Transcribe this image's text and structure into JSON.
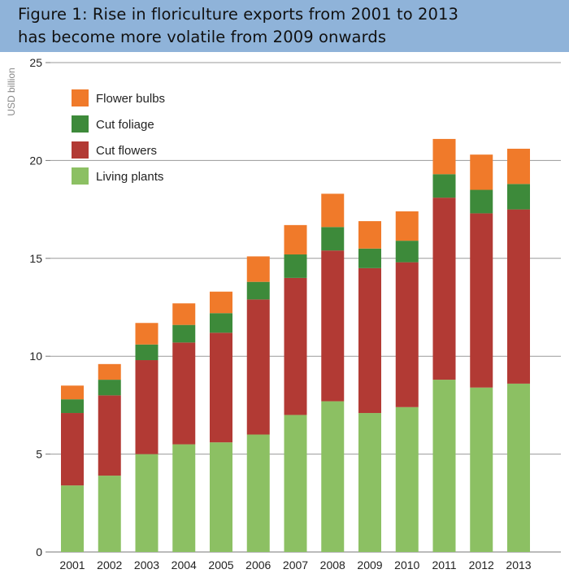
{
  "figure": {
    "title_line_1": "Figure 1: Rise in floriculture exports from 2001 to 2013",
    "title_line_2": "has become more volatile from 2009 onwards",
    "title_band_color": "#8fb3d9"
  },
  "chart_data": {
    "type": "bar",
    "stacked": true,
    "title": "Figure 1: Rise in floriculture exports from 2001 to 2013 has become more volatile from 2009 onwards",
    "xlabel": "",
    "ylabel": "USD billion",
    "ylim": [
      0,
      25
    ],
    "yticks": [
      0,
      5,
      10,
      15,
      20,
      25
    ],
    "grid": true,
    "legend_position": "top-left",
    "categories": [
      "2001",
      "2002",
      "2003",
      "2004",
      "2005",
      "2006",
      "2007",
      "2008",
      "2009",
      "2010",
      "2011",
      "2012",
      "2013"
    ],
    "series": [
      {
        "name": "Living plants",
        "color": "#8cc063",
        "values": [
          3.4,
          3.9,
          5.0,
          5.5,
          5.6,
          6.0,
          7.0,
          7.7,
          7.1,
          7.4,
          8.8,
          8.4,
          8.6
        ]
      },
      {
        "name": "Cut flowers",
        "color": "#b23a34",
        "values": [
          3.7,
          4.1,
          4.8,
          5.2,
          5.6,
          6.9,
          7.0,
          7.7,
          7.4,
          7.4,
          9.3,
          8.9,
          8.9
        ]
      },
      {
        "name": "Cut foliage",
        "color": "#3d8a3a",
        "values": [
          0.7,
          0.8,
          0.8,
          0.9,
          1.0,
          0.9,
          1.2,
          1.2,
          1.0,
          1.1,
          1.2,
          1.2,
          1.3
        ]
      },
      {
        "name": "Flower bulbs",
        "color": "#f07a2a",
        "values": [
          0.7,
          0.8,
          1.1,
          1.1,
          1.1,
          1.3,
          1.5,
          1.7,
          1.4,
          1.5,
          1.8,
          1.8,
          1.8
        ]
      }
    ],
    "legend_order": [
      "Flower bulbs",
      "Cut foliage",
      "Cut flowers",
      "Living plants"
    ]
  }
}
